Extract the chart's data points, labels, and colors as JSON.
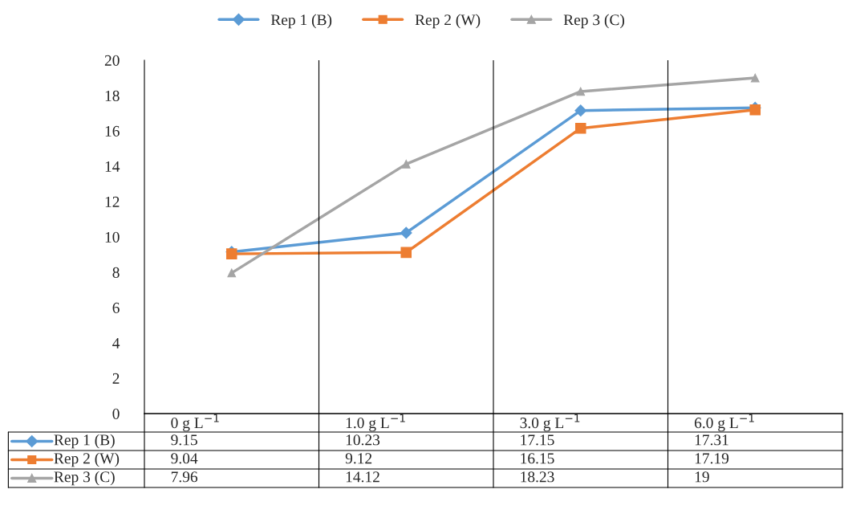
{
  "chart_data": {
    "type": "line",
    "categories": [
      "0 g L$^{−1}$",
      "1.0 g L$^{−1}$",
      "3.0 g L$^{−1}$",
      "6.0 g L$^{−1}$"
    ],
    "series": [
      {
        "name": "Rep 1 (B)",
        "color": "#5b9bd5",
        "marker": "diamond",
        "values": [
          9.15,
          10.23,
          17.15,
          17.31
        ]
      },
      {
        "name": "Rep 2 (W)",
        "color": "#ed7d31",
        "marker": "square",
        "values": [
          9.04,
          9.12,
          16.15,
          17.19
        ]
      },
      {
        "name": "Rep 3 (C)",
        "color": "#a5a5a5",
        "marker": "triangle",
        "values": [
          7.96,
          14.12,
          18.23,
          19
        ]
      }
    ],
    "ylim": [
      0,
      20
    ],
    "yticks": [
      0,
      2,
      4,
      6,
      8,
      10,
      12,
      14,
      16,
      18,
      20
    ],
    "data_labels": true,
    "legend": "top",
    "grid": false
  }
}
